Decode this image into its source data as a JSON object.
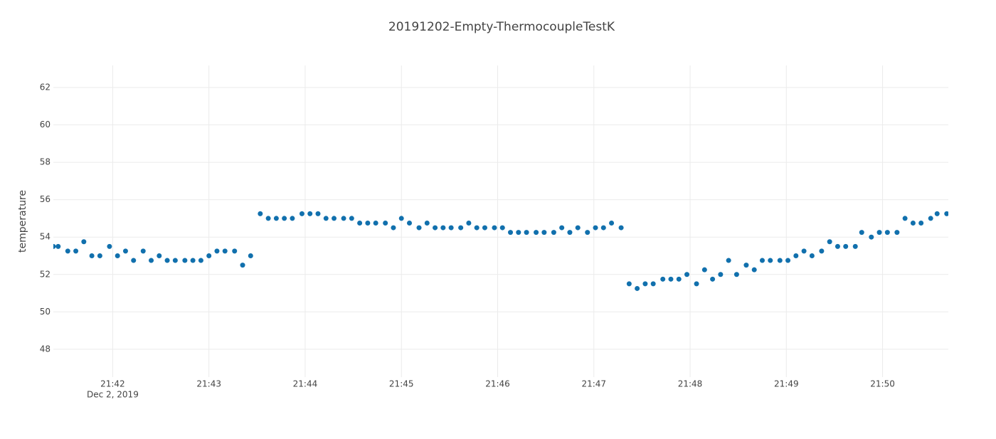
{
  "chart_data": {
    "type": "scatter",
    "title": "20191202-Empty-ThermocoupleTestK",
    "y_label": "temperature",
    "x_date_label": "Dec 2, 2019",
    "series": [
      {
        "color": "#1170ad",
        "x": [
          "21:41:23",
          "21:41:26",
          "21:41:32",
          "21:41:37",
          "21:41:42",
          "21:41:47",
          "21:41:52",
          "21:41:58",
          "21:42:03",
          "21:42:08",
          "21:42:13",
          "21:42:19",
          "21:42:24",
          "21:42:29",
          "21:42:34",
          "21:42:39",
          "21:42:45",
          "21:42:50",
          "21:42:55",
          "21:43:00",
          "21:43:05",
          "21:43:10",
          "21:43:16",
          "21:43:21",
          "21:43:26",
          "21:43:32",
          "21:43:37",
          "21:43:42",
          "21:43:47",
          "21:43:52",
          "21:43:58",
          "21:44:03",
          "21:44:08",
          "21:44:13",
          "21:44:18",
          "21:44:24",
          "21:44:29",
          "21:44:34",
          "21:44:39",
          "21:44:44",
          "21:44:50",
          "21:44:55",
          "21:45:00",
          "21:45:05",
          "21:45:11",
          "21:45:16",
          "21:45:21",
          "21:45:26",
          "21:45:31",
          "21:45:37",
          "21:45:42",
          "21:45:47",
          "21:45:52",
          "21:45:58",
          "21:46:03",
          "21:46:08",
          "21:46:13",
          "21:46:18",
          "21:46:24",
          "21:46:29",
          "21:46:35",
          "21:46:40",
          "21:46:45",
          "21:46:50",
          "21:46:56",
          "21:47:01",
          "21:47:06",
          "21:47:11",
          "21:47:17",
          "21:47:22",
          "21:47:27",
          "21:47:32",
          "21:47:37",
          "21:47:43",
          "21:47:48",
          "21:47:53",
          "21:47:58",
          "21:48:04",
          "21:48:09",
          "21:48:14",
          "21:48:19",
          "21:48:24",
          "21:48:29",
          "21:48:35",
          "21:48:40",
          "21:48:45",
          "21:48:50",
          "21:48:56",
          "21:49:01",
          "21:49:06",
          "21:49:11",
          "21:49:16",
          "21:49:22",
          "21:49:27",
          "21:49:32",
          "21:49:37",
          "21:49:43",
          "21:49:47",
          "21:49:53",
          "21:49:58",
          "21:50:03",
          "21:50:09",
          "21:50:14",
          "21:50:19",
          "21:50:24",
          "21:50:30",
          "21:50:34",
          "21:50:40"
        ],
        "values": [
          53.5,
          53.5,
          53.25,
          53.25,
          53.75,
          53,
          53,
          53.5,
          53,
          53.25,
          52.75,
          53.25,
          52.75,
          53,
          52.75,
          52.75,
          52.75,
          52.75,
          52.75,
          53,
          53.25,
          53.25,
          53.25,
          52.5,
          53,
          55.25,
          55,
          55,
          55,
          55,
          55.25,
          55.25,
          55.25,
          55,
          55,
          55,
          55,
          54.75,
          54.75,
          54.75,
          54.75,
          54.5,
          55,
          54.75,
          54.5,
          54.75,
          54.5,
          54.5,
          54.5,
          54.5,
          54.75,
          54.5,
          54.5,
          54.5,
          54.5,
          54.25,
          54.25,
          54.25,
          54.25,
          54.25,
          54.25,
          54.5,
          54.25,
          54.5,
          54.25,
          54.5,
          54.5,
          54.75,
          54.5,
          51.5,
          51.25,
          51.5,
          51.5,
          51.75,
          51.75,
          51.75,
          52,
          51.5,
          52.25,
          51.75,
          52,
          52.75,
          52,
          52.5,
          52.25,
          52.75,
          52.75,
          52.75,
          52.75,
          53,
          53.25,
          53,
          53.25,
          53.75,
          53.5,
          53.5,
          53.5,
          54.25,
          54,
          54.25,
          54.25,
          54.25,
          55,
          54.75,
          54.75,
          55,
          55.25,
          55.25
        ]
      }
    ],
    "xlim": [
      "21:41:23",
      "21:50:41"
    ],
    "xticks": [
      "21:42",
      "21:43",
      "21:44",
      "21:45",
      "21:46",
      "21:47",
      "21:48",
      "21:49",
      "21:50"
    ],
    "ylim": [
      46.51,
      63.18
    ],
    "yticks": [
      48,
      50,
      52,
      54,
      56,
      58,
      60,
      62
    ],
    "grid": true
  }
}
